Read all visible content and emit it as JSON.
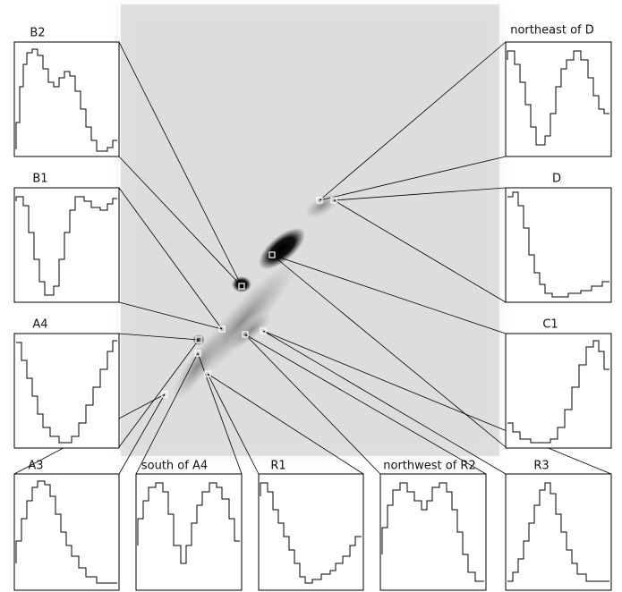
{
  "panels": [
    {
      "label": "B2"
    },
    {
      "label": "B1"
    },
    {
      "label": "A4"
    },
    {
      "label": "northeast of D"
    },
    {
      "label": "D"
    },
    {
      "label": "C1"
    },
    {
      "label": "A3"
    },
    {
      "label": "south of A4"
    },
    {
      "label": "R1"
    },
    {
      "label": "northwest of R2"
    },
    {
      "label": "R3"
    }
  ]
}
